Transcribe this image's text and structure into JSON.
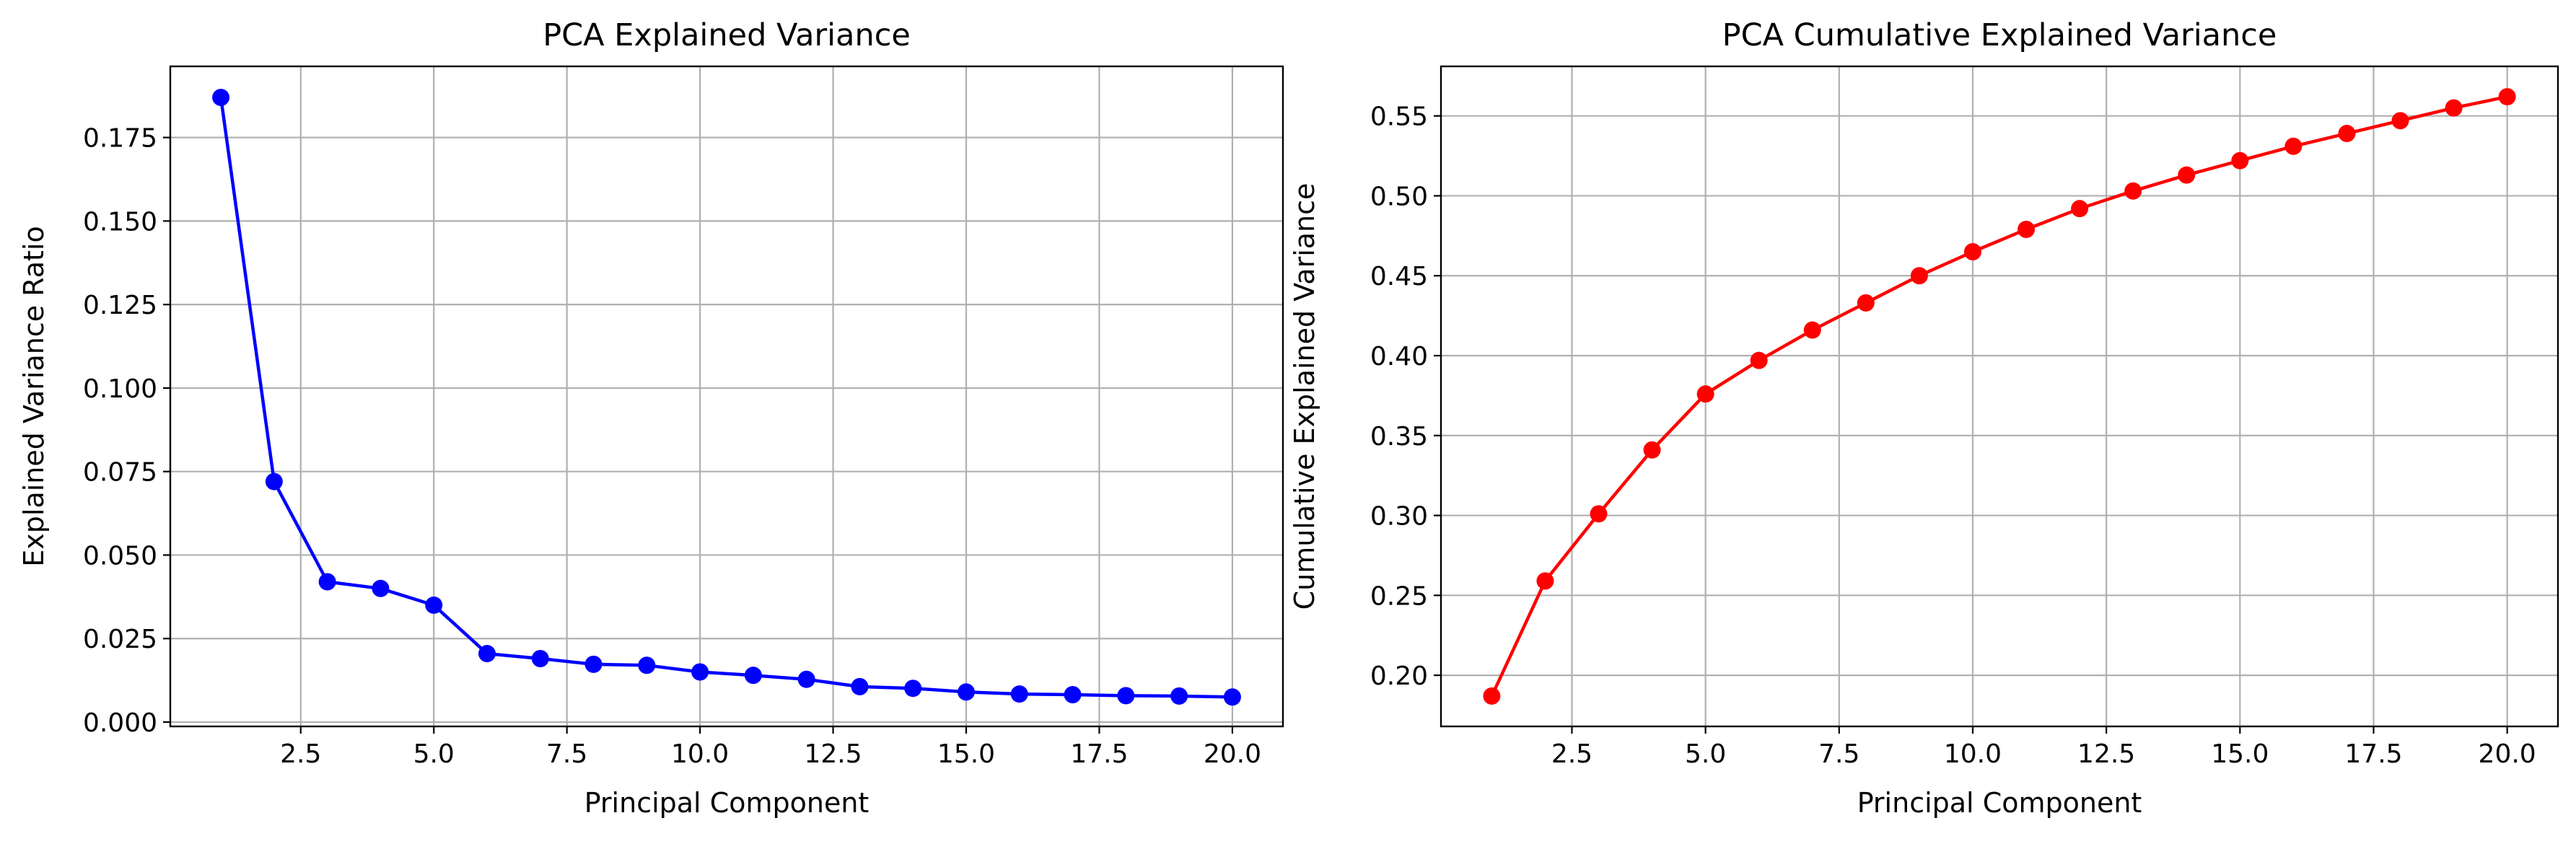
{
  "chart_data": [
    {
      "type": "line",
      "title": "PCA Explained Variance",
      "xlabel": "Principal Component",
      "ylabel": "Explained Variance Ratio",
      "xlim": [
        0.05,
        20.95
      ],
      "ylim": [
        -0.0013,
        0.1963
      ],
      "x_ticks": [
        2.5,
        5.0,
        7.5,
        10.0,
        12.5,
        15.0,
        17.5,
        20.0
      ],
      "y_ticks": [
        0.0,
        0.025,
        0.05,
        0.075,
        0.1,
        0.125,
        0.15,
        0.175
      ],
      "x_tick_labels": [
        "2.5",
        "5.0",
        "7.5",
        "10.0",
        "12.5",
        "15.0",
        "17.5",
        "20.0"
      ],
      "y_tick_labels": [
        "0.000",
        "0.025",
        "0.050",
        "0.075",
        "0.100",
        "0.125",
        "0.150",
        "0.175"
      ],
      "grid": true,
      "marker": "circle",
      "series": [
        {
          "color": "#0000ff",
          "x": [
            1,
            2,
            3,
            4,
            5,
            6,
            7,
            8,
            9,
            10,
            11,
            12,
            13,
            14,
            15,
            16,
            17,
            18,
            19,
            20
          ],
          "y": [
            0.187,
            0.072,
            0.042,
            0.04,
            0.035,
            0.0205,
            0.019,
            0.0173,
            0.017,
            0.015,
            0.014,
            0.0128,
            0.0106,
            0.0101,
            0.009,
            0.0084,
            0.0082,
            0.0079,
            0.0078,
            0.0075
          ]
        }
      ]
    },
    {
      "type": "line",
      "title": "PCA Cumulative Explained Variance",
      "xlabel": "Principal Component",
      "ylabel": "Cumulative Explained Variance",
      "xlim": [
        0.05,
        20.95
      ],
      "ylim": [
        0.168,
        0.581
      ],
      "x_ticks": [
        2.5,
        5.0,
        7.5,
        10.0,
        12.5,
        15.0,
        17.5,
        20.0
      ],
      "y_ticks": [
        0.2,
        0.25,
        0.3,
        0.35,
        0.4,
        0.45,
        0.5,
        0.55
      ],
      "x_tick_labels": [
        "2.5",
        "5.0",
        "7.5",
        "10.0",
        "12.5",
        "15.0",
        "17.5",
        "20.0"
      ],
      "y_tick_labels": [
        "0.20",
        "0.25",
        "0.30",
        "0.35",
        "0.40",
        "0.45",
        "0.50",
        "0.55"
      ],
      "grid": true,
      "marker": "circle",
      "series": [
        {
          "color": "#ff0000",
          "x": [
            1,
            2,
            3,
            4,
            5,
            6,
            7,
            8,
            9,
            10,
            11,
            12,
            13,
            14,
            15,
            16,
            17,
            18,
            19,
            20
          ],
          "y": [
            0.187,
            0.259,
            0.301,
            0.341,
            0.376,
            0.397,
            0.416,
            0.433,
            0.45,
            0.465,
            0.479,
            0.492,
            0.503,
            0.513,
            0.522,
            0.531,
            0.539,
            0.547,
            0.555,
            0.562
          ]
        }
      ]
    }
  ]
}
